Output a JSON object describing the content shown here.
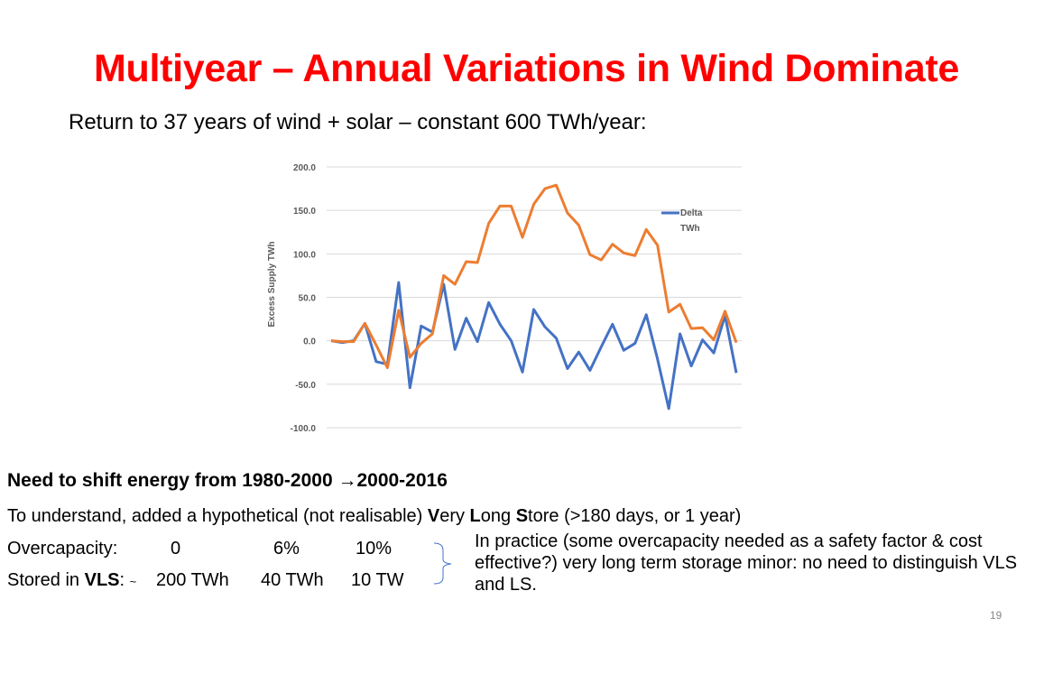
{
  "title": "Multiyear – Annual Variations in Wind Dominate",
  "subtitle": "Return to 37 years of wind + solar – constant 600 TWh/year:",
  "chart_data": {
    "type": "line",
    "title": "",
    "xlabel": "",
    "ylabel": "Excess Supply TWh",
    "ylim": [
      -100,
      200
    ],
    "yticks": [
      "200.0",
      "150.0",
      "100.0",
      "50.0",
      "0.0",
      "-50.0",
      "-100.0"
    ],
    "ytick_values": [
      200,
      150,
      100,
      50,
      0,
      -50,
      -100
    ],
    "grid": true,
    "legend_placement": "top-right",
    "series": [
      {
        "name": "Delta TWh",
        "color": "#4472c4",
        "values": [
          0,
          -2,
          0,
          20,
          -24,
          -27,
          67,
          -54,
          17,
          10,
          65,
          -10,
          26,
          -1,
          44,
          19,
          0,
          -36,
          36,
          16,
          3,
          -32,
          -13,
          -34,
          -7,
          19,
          -11,
          -3,
          30,
          -21,
          -78,
          8,
          -29,
          1,
          -14,
          29,
          -37
        ]
      },
      {
        "color": "#ed7d31",
        "values": [
          0,
          -1,
          -1,
          20,
          -5,
          -31,
          35,
          -19,
          -3,
          8,
          75,
          65,
          91,
          90,
          135,
          155,
          155,
          119,
          157,
          175,
          179,
          147,
          133,
          99,
          93,
          111,
          101,
          98,
          128,
          110,
          33,
          42,
          14,
          15,
          1,
          34,
          -2
        ]
      }
    ],
    "legend": {
      "label_line1": "Delta",
      "label_line2": "TWh"
    }
  },
  "body": {
    "heading_pre": "Need to shift energy from 1980-2000 ",
    "heading_arrow": "→",
    "heading_post": "2000-2016",
    "line1_pre": "To understand, added a hypothetical (not realisable) ",
    "line1_V": "V",
    "line1_ery": "ery ",
    "line1_L": "L",
    "line1_ong": "ong ",
    "line1_S": "S",
    "line1_post": "tore (>180 days, or 1 year)",
    "overcap_label": "Overcapacity:",
    "overcap_values": [
      "0",
      "6%",
      "10%"
    ],
    "stored_label_pre": "Stored in ",
    "stored_label_bold": "VLS",
    "stored_label_post": ": ",
    "stored_tilde": "~",
    "stored_values": [
      "200 TWh",
      "40 TWh",
      "10 TW"
    ],
    "note": "In practice (some overcapacity needed as a safety factor & cost effective?) very long term storage minor: no need to distinguish VLS and LS."
  },
  "page_number": "19",
  "colors": {
    "title": "#ff0000",
    "bracket": "#4472c4"
  }
}
